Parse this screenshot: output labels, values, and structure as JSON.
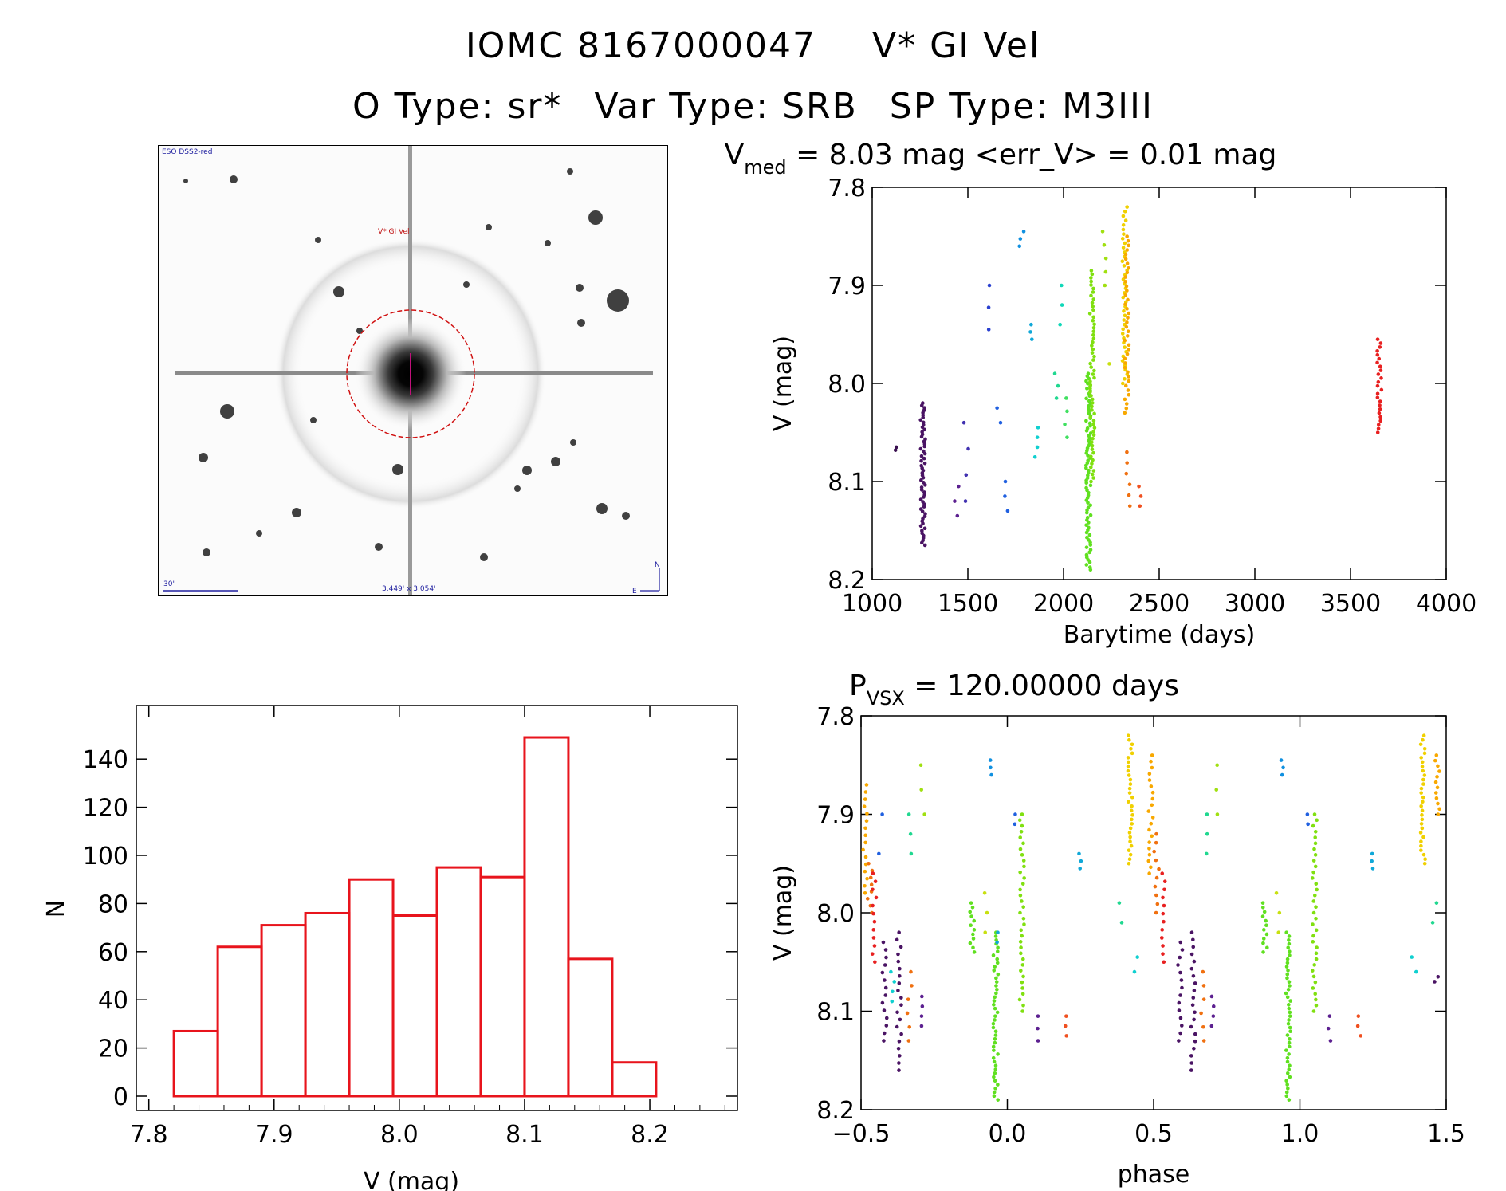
{
  "header": {
    "id_label": "IOMC 8167000047",
    "star_name": "V* GI Vel",
    "otype": "O Type: sr*",
    "vartype": "Var Type: SRB",
    "sptype": "SP Type: M3III"
  },
  "sky_image": {
    "survey_label": "ESO DSS2-red",
    "target_label": "V* GI Vel",
    "scale_label": "30\"",
    "fov_label": "3.449' x 3.054'",
    "north_label": "N",
    "east_label": "E"
  },
  "chart_data": [
    {
      "type": "scatter",
      "title_parts": [
        "V",
        "med",
        " = 8.03 mag <err_V> = 0.01 mag"
      ],
      "xlabel": "Barytime (days)",
      "ylabel": "V (mag)",
      "xlim": [
        1000,
        4000
      ],
      "ylim": [
        8.2,
        7.8
      ],
      "y_inverted": true,
      "xticks": [
        "1000",
        "1500",
        "2000",
        "2500",
        "3000",
        "3500",
        "4000"
      ],
      "yticks": [
        "7.8",
        "7.9",
        "8.0",
        "8.1",
        "8.2"
      ],
      "groups": [
        {
          "color": "#3a1050",
          "x": 1120,
          "ymin": 8.065,
          "ymax": 8.068,
          "n": 2
        },
        {
          "color": "#4a1464",
          "x": 1265,
          "ymin": 8.02,
          "ymax": 8.165,
          "n": 60
        },
        {
          "color": "#5c2090",
          "x": 1440,
          "ymin": 8.105,
          "ymax": 8.135,
          "n": 3
        },
        {
          "color": "#4030b0",
          "x": 1490,
          "ymin": 8.04,
          "ymax": 8.12,
          "n": 4
        },
        {
          "color": "#2a40d0",
          "x": 1610,
          "ymin": 7.9,
          "ymax": 7.945,
          "n": 3
        },
        {
          "color": "#2060e0",
          "x": 1665,
          "ymin": 8.025,
          "ymax": 8.04,
          "n": 2
        },
        {
          "color": "#2060e0",
          "x": 1700,
          "ymin": 8.1,
          "ymax": 8.13,
          "n": 3
        },
        {
          "color": "#1090e0",
          "x": 1780,
          "ymin": 7.845,
          "ymax": 7.86,
          "n": 3
        },
        {
          "color": "#10a8d8",
          "x": 1830,
          "ymin": 7.94,
          "ymax": 7.955,
          "n": 3
        },
        {
          "color": "#10d0d0",
          "x": 1860,
          "ymin": 8.045,
          "ymax": 8.075,
          "n": 4
        },
        {
          "color": "#10d8b8",
          "x": 1990,
          "ymin": 7.9,
          "ymax": 7.94,
          "n": 3
        },
        {
          "color": "#20d890",
          "x": 1960,
          "ymin": 7.99,
          "ymax": 8.015,
          "n": 3
        },
        {
          "color": "#40e060",
          "x": 2010,
          "ymin": 8.015,
          "ymax": 8.055,
          "n": 4
        },
        {
          "color": "#60e020",
          "x": 2130,
          "ymin": 7.99,
          "ymax": 8.19,
          "n": 80
        },
        {
          "color": "#80e010",
          "x": 2150,
          "ymin": 7.885,
          "ymax": 8.1,
          "n": 60
        },
        {
          "color": "#a0e010",
          "x": 2210,
          "ymin": 7.845,
          "ymax": 7.9,
          "n": 5
        },
        {
          "color": "#c8e010",
          "x": 2250,
          "ymin": 7.98,
          "ymax": 7.98,
          "n": 1
        },
        {
          "color": "#f0d000",
          "x": 2320,
          "ymin": 7.82,
          "ymax": 8.0,
          "n": 40
        },
        {
          "color": "#f8a800",
          "x": 2330,
          "ymin": 7.85,
          "ymax": 8.03,
          "n": 40
        },
        {
          "color": "#f07010",
          "x": 2335,
          "ymin": 8.07,
          "ymax": 8.125,
          "n": 6
        },
        {
          "color": "#f05020",
          "x": 2400,
          "ymin": 8.105,
          "ymax": 8.125,
          "n": 3
        },
        {
          "color": "#e82020",
          "x": 3650,
          "ymin": 7.955,
          "ymax": 8.05,
          "n": 25
        }
      ]
    },
    {
      "type": "scatter",
      "title_parts": [
        "P",
        "VSX",
        " = 120.00000 days"
      ],
      "xlabel": "phase",
      "ylabel": "V (mag)",
      "xlim": [
        -0.5,
        1.5
      ],
      "ylim": [
        8.2,
        7.8
      ],
      "y_inverted": true,
      "xticks": [
        "−0.5",
        "0.0",
        "0.5",
        "1.0",
        "1.5"
      ],
      "yticks": [
        "7.8",
        "7.9",
        "8.0",
        "8.1",
        "8.2"
      ],
      "groups": [
        {
          "color": "#f8a800",
          "x": -0.485,
          "ymin": 7.87,
          "ymax": 7.98,
          "n": 16
        },
        {
          "color": "#f07010",
          "x": -0.47,
          "ymin": 7.95,
          "ymax": 8.0,
          "n": 8
        },
        {
          "color": "#e82020",
          "x": -0.455,
          "ymin": 7.96,
          "ymax": 8.05,
          "n": 12
        },
        {
          "color": "#2060e0",
          "x": -0.435,
          "ymin": 7.9,
          "ymax": 7.94,
          "n": 2
        },
        {
          "color": "#4a1464",
          "x": -0.42,
          "ymin": 8.03,
          "ymax": 8.13,
          "n": 14
        },
        {
          "color": "#4a1464",
          "x": -0.37,
          "ymin": 8.02,
          "ymax": 8.16,
          "n": 20
        },
        {
          "color": "#10d0d0",
          "x": -0.39,
          "ymin": 8.06,
          "ymax": 8.09,
          "n": 4
        },
        {
          "color": "#f07010",
          "x": -0.335,
          "ymin": 8.06,
          "ymax": 8.13,
          "n": 6
        },
        {
          "color": "#5c2090",
          "x": -0.295,
          "ymin": 8.085,
          "ymax": 8.115,
          "n": 4
        },
        {
          "color": "#20d890",
          "x": -0.33,
          "ymin": 7.9,
          "ymax": 7.94,
          "n": 3
        },
        {
          "color": "#a0e010",
          "x": -0.29,
          "ymin": 7.85,
          "ymax": 7.9,
          "n": 3
        },
        {
          "color": "#1090e0",
          "x": -0.06,
          "ymin": 7.845,
          "ymax": 7.86,
          "n": 3
        },
        {
          "color": "#c8e010",
          "x": -0.075,
          "ymin": 7.98,
          "ymax": 8.02,
          "n": 3
        },
        {
          "color": "#60e020",
          "x": -0.12,
          "ymin": 7.99,
          "ymax": 8.04,
          "n": 12
        },
        {
          "color": "#60e020",
          "x": -0.04,
          "ymin": 8.02,
          "ymax": 8.19,
          "n": 45
        },
        {
          "color": "#10a8d8",
          "x": -0.03,
          "ymin": 8.02,
          "ymax": 8.03,
          "n": 2
        },
        {
          "color": "#80e010",
          "x": 0.05,
          "ymin": 7.9,
          "ymax": 8.1,
          "n": 35
        },
        {
          "color": "#2060e0",
          "x": 0.02,
          "ymin": 7.9,
          "ymax": 7.91,
          "n": 2
        },
        {
          "color": "#5c2090",
          "x": 0.1,
          "ymin": 8.105,
          "ymax": 8.13,
          "n": 3
        },
        {
          "color": "#f05020",
          "x": 0.2,
          "ymin": 8.105,
          "ymax": 8.125,
          "n": 3
        },
        {
          "color": "#10a8d8",
          "x": 0.245,
          "ymin": 7.94,
          "ymax": 7.955,
          "n": 3
        },
        {
          "color": "#f0d000",
          "x": 0.42,
          "ymin": 7.82,
          "ymax": 7.95,
          "n": 30
        },
        {
          "color": "#f8a800",
          "x": 0.49,
          "ymin": 7.84,
          "ymax": 7.96,
          "n": 20
        },
        {
          "color": "#f07010",
          "x": 0.51,
          "ymin": 7.92,
          "ymax": 8.0,
          "n": 10
        },
        {
          "color": "#e82020",
          "x": 0.535,
          "ymin": 7.96,
          "ymax": 8.05,
          "n": 12
        },
        {
          "color": "#10d0d0",
          "x": 0.44,
          "ymin": 8.045,
          "ymax": 8.06,
          "n": 2
        },
        {
          "color": "#20d890",
          "x": 0.39,
          "ymin": 7.99,
          "ymax": 8.01,
          "n": 2
        },
        {
          "color": "#4a1464",
          "x": 0.59,
          "ymin": 8.03,
          "ymax": 8.13,
          "n": 14
        },
        {
          "color": "#4a1464",
          "x": 0.635,
          "ymin": 8.02,
          "ymax": 8.16,
          "n": 20
        },
        {
          "color": "#f07010",
          "x": 0.665,
          "ymin": 8.06,
          "ymax": 8.13,
          "n": 6
        },
        {
          "color": "#5c2090",
          "x": 0.705,
          "ymin": 8.085,
          "ymax": 8.115,
          "n": 4
        },
        {
          "color": "#20d890",
          "x": 0.685,
          "ymin": 7.9,
          "ymax": 7.94,
          "n": 3
        },
        {
          "color": "#a0e010",
          "x": 0.71,
          "ymin": 7.85,
          "ymax": 7.9,
          "n": 3
        },
        {
          "color": "#1090e0",
          "x": 0.94,
          "ymin": 7.845,
          "ymax": 7.86,
          "n": 3
        },
        {
          "color": "#c8e010",
          "x": 0.925,
          "ymin": 7.98,
          "ymax": 8.02,
          "n": 3
        },
        {
          "color": "#60e020",
          "x": 0.88,
          "ymin": 7.99,
          "ymax": 8.04,
          "n": 12
        },
        {
          "color": "#60e020",
          "x": 0.96,
          "ymin": 8.02,
          "ymax": 8.19,
          "n": 45
        },
        {
          "color": "#80e010",
          "x": 1.05,
          "ymin": 7.9,
          "ymax": 8.1,
          "n": 35
        },
        {
          "color": "#2060e0",
          "x": 1.02,
          "ymin": 7.9,
          "ymax": 7.91,
          "n": 2
        },
        {
          "color": "#5c2090",
          "x": 1.1,
          "ymin": 8.105,
          "ymax": 8.13,
          "n": 3
        },
        {
          "color": "#f05020",
          "x": 1.2,
          "ymin": 8.105,
          "ymax": 8.125,
          "n": 3
        },
        {
          "color": "#10a8d8",
          "x": 1.245,
          "ymin": 7.94,
          "ymax": 7.955,
          "n": 3
        },
        {
          "color": "#f0d000",
          "x": 1.42,
          "ymin": 7.82,
          "ymax": 7.95,
          "n": 30
        },
        {
          "color": "#f8a800",
          "x": 1.47,
          "ymin": 7.84,
          "ymax": 7.9,
          "n": 12
        },
        {
          "color": "#10d0d0",
          "x": 1.39,
          "ymin": 8.045,
          "ymax": 8.06,
          "n": 2
        },
        {
          "color": "#20d890",
          "x": 1.46,
          "ymin": 7.99,
          "ymax": 8.01,
          "n": 2
        },
        {
          "color": "#4a1464",
          "x": 1.465,
          "ymin": 8.065,
          "ymax": 8.07,
          "n": 2
        }
      ]
    },
    {
      "type": "bar",
      "histogram": true,
      "title": "",
      "xlabel": "V (mag)",
      "ylabel": "N",
      "xlim": [
        7.79,
        8.27
      ],
      "ylim": [
        0,
        150
      ],
      "xticks": [
        "7.8",
        "7.9",
        "8.0",
        "8.1",
        "8.2"
      ],
      "yticks": [
        "0",
        "20",
        "40",
        "60",
        "80",
        "100",
        "120",
        "140"
      ],
      "bin_edges": [
        7.82,
        7.855,
        7.89,
        7.925,
        7.96,
        7.995,
        8.03,
        8.065,
        8.1,
        8.135,
        8.17,
        8.205
      ],
      "values": [
        27,
        62,
        71,
        76,
        90,
        75,
        95,
        91,
        149,
        57,
        14
      ],
      "bar_color": "#e8141c"
    }
  ]
}
